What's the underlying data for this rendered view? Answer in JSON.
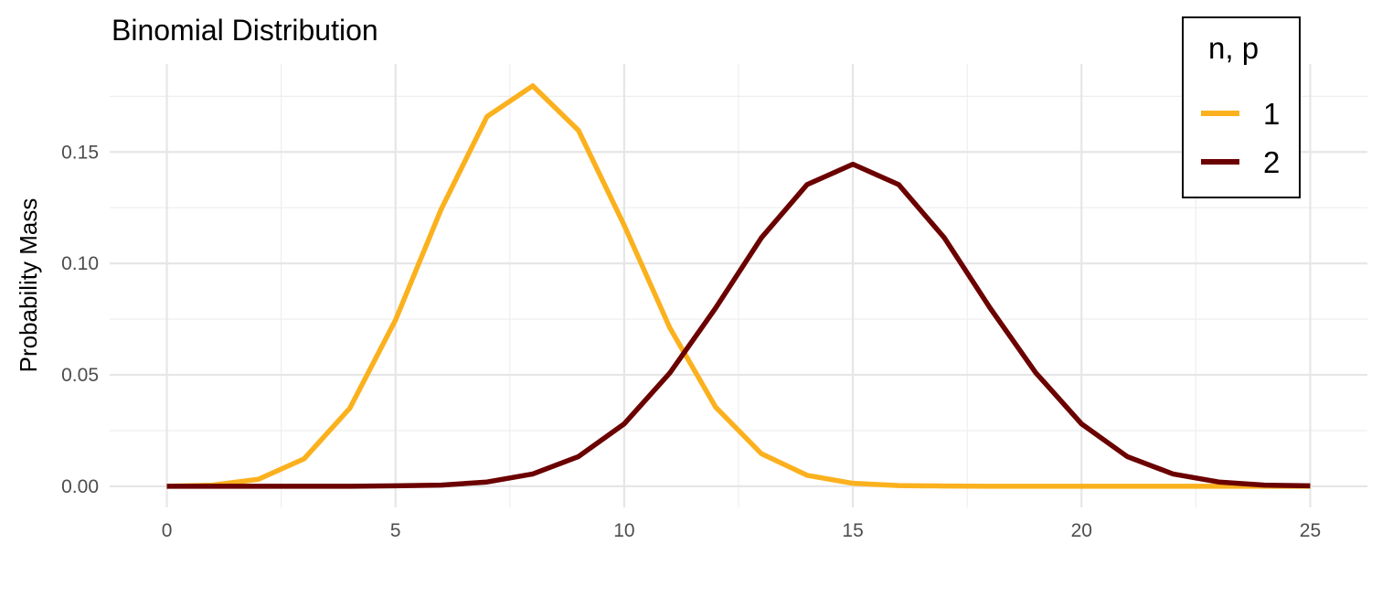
{
  "chart_data": {
    "type": "line",
    "title": "Binomial Distribution",
    "xlabel": "",
    "ylabel": "Probability Mass",
    "xlim": [
      -1.25,
      26.25
    ],
    "ylim": [
      -0.0095,
      0.1895
    ],
    "x_ticks": [
      0,
      5,
      10,
      15,
      20,
      25
    ],
    "x_tick_labels": [
      "0",
      "5",
      "10",
      "15",
      "20",
      "25"
    ],
    "y_ticks": [
      0.0,
      0.05,
      0.1,
      0.15
    ],
    "y_tick_labels": [
      "0.00",
      "0.05",
      "0.10",
      "0.15"
    ],
    "grid": true,
    "legend": {
      "title": "n, p",
      "position": "top-right"
    },
    "x": [
      0,
      1,
      2,
      3,
      4,
      5,
      6,
      7,
      8,
      9,
      10,
      11,
      12,
      13,
      14,
      15,
      16,
      17,
      18,
      19,
      20,
      21,
      22,
      23,
      24,
      25
    ],
    "series": [
      {
        "name": "1",
        "color": "#FBB11E",
        "values": [
          0.0,
          0.0005,
          0.0031,
          0.0123,
          0.035,
          0.0746,
          0.1244,
          0.1659,
          0.1797,
          0.1597,
          0.1171,
          0.071,
          0.0355,
          0.0146,
          0.0049,
          0.0013,
          0.0003,
          0.0001,
          0.0,
          0.0,
          0.0,
          0.0,
          0.0,
          0.0,
          0.0,
          0.0
        ]
      },
      {
        "name": "2",
        "color": "#6B0000",
        "values": [
          0.0,
          0.0,
          0.0,
          0.0,
          0.0,
          0.0002,
          0.0005,
          0.0019,
          0.0055,
          0.0133,
          0.028,
          0.0509,
          0.08,
          0.1115,
          0.1354,
          0.1445,
          0.1354,
          0.1115,
          0.08,
          0.0509,
          0.028,
          0.0133,
          0.0055,
          0.0019,
          0.0005,
          0.0002
        ]
      }
    ]
  }
}
